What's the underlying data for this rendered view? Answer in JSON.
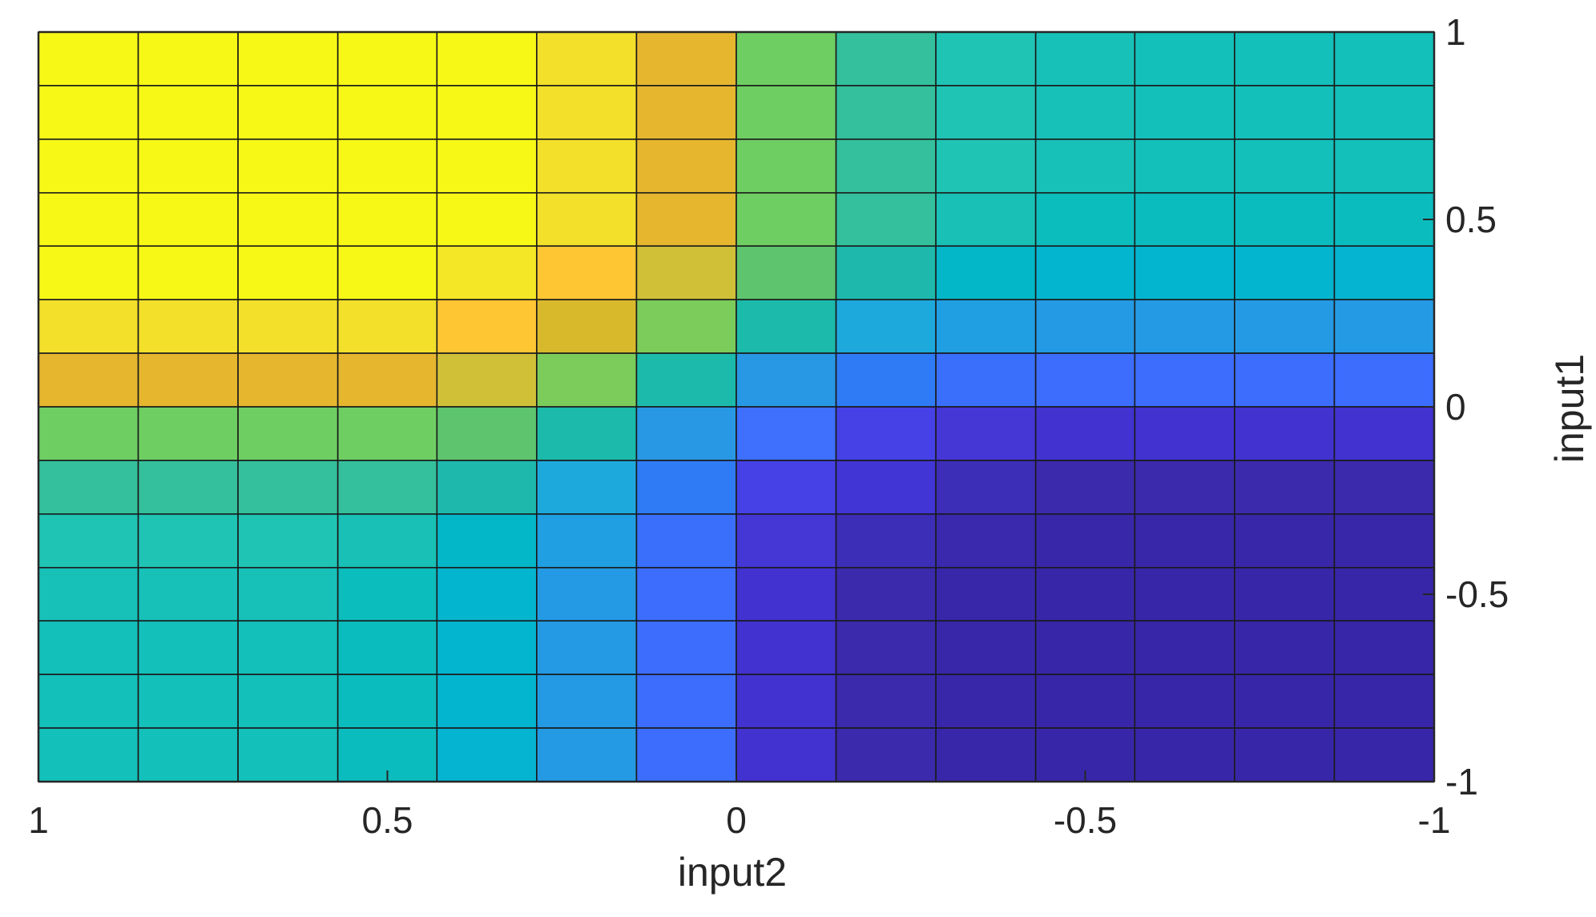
{
  "chart_data": {
    "type": "heatmap",
    "title": "",
    "xlabel": "input2",
    "ylabel": "input1",
    "xlim": [
      1,
      -1
    ],
    "ylim": [
      -1,
      1
    ],
    "x_reversed": true,
    "y_axis_location": "right",
    "x_ticks": [
      {
        "value": 1,
        "label": "1"
      },
      {
        "value": 0.5,
        "label": "0.5"
      },
      {
        "value": 0,
        "label": "0"
      },
      {
        "value": -0.5,
        "label": "-0.5"
      },
      {
        "value": -1,
        "label": "-1"
      }
    ],
    "y_ticks": [
      {
        "value": 1,
        "label": "1"
      },
      {
        "value": 0.5,
        "label": "0.5"
      },
      {
        "value": 0,
        "label": "0"
      },
      {
        "value": -0.5,
        "label": "-0.5"
      },
      {
        "value": -1,
        "label": "-1"
      }
    ],
    "grid_x_edges": [
      1,
      0.857,
      0.714,
      0.571,
      0.429,
      0.286,
      0.143,
      0,
      -0.143,
      -0.286,
      -0.429,
      -0.571,
      -0.714,
      -0.857,
      -1
    ],
    "grid_y_edges": [
      1,
      0.857,
      0.714,
      0.571,
      0.429,
      0.286,
      0.143,
      0,
      -0.143,
      -0.286,
      -0.429,
      -0.571,
      -0.714,
      -0.857,
      -1
    ],
    "edge_color": "#1a1a1a",
    "colormap": "parula",
    "cell_colors": [
      [
        "#f8f817",
        "#f8f817",
        "#f8f817",
        "#f8f817",
        "#f8f817",
        "#f2e02a",
        "#e6b62f",
        "#6fce62",
        "#34c09c",
        "#20c4b5",
        "#17c1b8",
        "#14c0ba",
        "#14c0ba",
        "#14c0ba"
      ],
      [
        "#f8f817",
        "#f8f817",
        "#f8f817",
        "#f8f817",
        "#f8f817",
        "#f2e02a",
        "#e6b62f",
        "#6fce62",
        "#34c09c",
        "#20c4b5",
        "#17c1b8",
        "#14c0ba",
        "#14c0ba",
        "#14c0ba"
      ],
      [
        "#f8f817",
        "#f8f817",
        "#f8f817",
        "#f8f817",
        "#f8f817",
        "#f2e02a",
        "#e6b62f",
        "#6fce62",
        "#34c09c",
        "#20c4b5",
        "#17c1b8",
        "#14c0ba",
        "#14c0ba",
        "#14c0ba"
      ],
      [
        "#f8f817",
        "#f8f817",
        "#f8f817",
        "#f8f817",
        "#f8f817",
        "#f2e02a",
        "#e6b62f",
        "#6fce62",
        "#34c09c",
        "#18c0b5",
        "#0cbdbd",
        "#0bbcbe",
        "#0bbcbe",
        "#0bbcbe"
      ],
      [
        "#f8f817",
        "#f8f817",
        "#f8f817",
        "#f8f817",
        "#f4e725",
        "#fec633",
        "#cfc038",
        "#5ec46d",
        "#1eb8ad",
        "#04b7c8",
        "#04b5cf",
        "#04b5cf",
        "#04b5cf",
        "#05b4d1"
      ],
      [
        "#f2e02a",
        "#f2e02a",
        "#f2e02a",
        "#f2e02a",
        "#fec633",
        "#d9b92c",
        "#7bcc5a",
        "#1bbaaa",
        "#1da9dc",
        "#20a0e2",
        "#249ae4",
        "#249ae4",
        "#249ae4",
        "#259ae4"
      ],
      [
        "#e6b62f",
        "#e6b62f",
        "#e6b62f",
        "#e6b62f",
        "#cfc038",
        "#7bcc5a",
        "#1bbaaa",
        "#2898e4",
        "#2f7bf6",
        "#396ffb",
        "#3c6dfd",
        "#3c6dfd",
        "#3c6dfd",
        "#3c6dfd"
      ],
      [
        "#6fce62",
        "#6fce62",
        "#6fce62",
        "#6fce62",
        "#5ec46d",
        "#1bbaaa",
        "#2898e4",
        "#3e6ffd",
        "#4541e6",
        "#4536d6",
        "#4232d0",
        "#4232d0",
        "#4232d0",
        "#4232d0"
      ],
      [
        "#34c09c",
        "#34c09c",
        "#34c09c",
        "#34c09c",
        "#1eb8ad",
        "#1da9dc",
        "#2f7bf6",
        "#4541e6",
        "#4135d6",
        "#3d2eb8",
        "#3b2aab",
        "#3b2aab",
        "#3b2aab",
        "#3b2aab"
      ],
      [
        "#20c4b5",
        "#20c4b5",
        "#20c4b5",
        "#18c0b5",
        "#04b7c8",
        "#20a0e2",
        "#396ffb",
        "#4536d6",
        "#3d2eb8",
        "#3a29ad",
        "#3927a9",
        "#3927a9",
        "#3927a9",
        "#3927a9"
      ],
      [
        "#17c1b8",
        "#17c1b8",
        "#17c1b8",
        "#0cbdbd",
        "#04b5cf",
        "#249ae4",
        "#3c6dfd",
        "#4232d0",
        "#3b2aab",
        "#3927a9",
        "#3826a8",
        "#3826a8",
        "#3826a8",
        "#3826a8"
      ],
      [
        "#14c0ba",
        "#14c0ba",
        "#14c0ba",
        "#0bbcbe",
        "#04b5cf",
        "#249ae4",
        "#3c6dfd",
        "#4232d0",
        "#3b2aab",
        "#3927a9",
        "#3826a8",
        "#3826a8",
        "#3826a8",
        "#3826a8"
      ],
      [
        "#14c0ba",
        "#14c0ba",
        "#14c0ba",
        "#0bbcbe",
        "#04b5cf",
        "#249ae4",
        "#3c6dfd",
        "#4232d0",
        "#3b2aab",
        "#3927a9",
        "#3826a8",
        "#3826a8",
        "#3826a8",
        "#3826a8"
      ],
      [
        "#14c0ba",
        "#14c0ba",
        "#14c0ba",
        "#0bbcbe",
        "#05b4d1",
        "#259ae4",
        "#3c6dfd",
        "#4232d0",
        "#3b2aab",
        "#3927a9",
        "#3826a8",
        "#3826a8",
        "#3826a8",
        "#3826a8"
      ]
    ]
  }
}
